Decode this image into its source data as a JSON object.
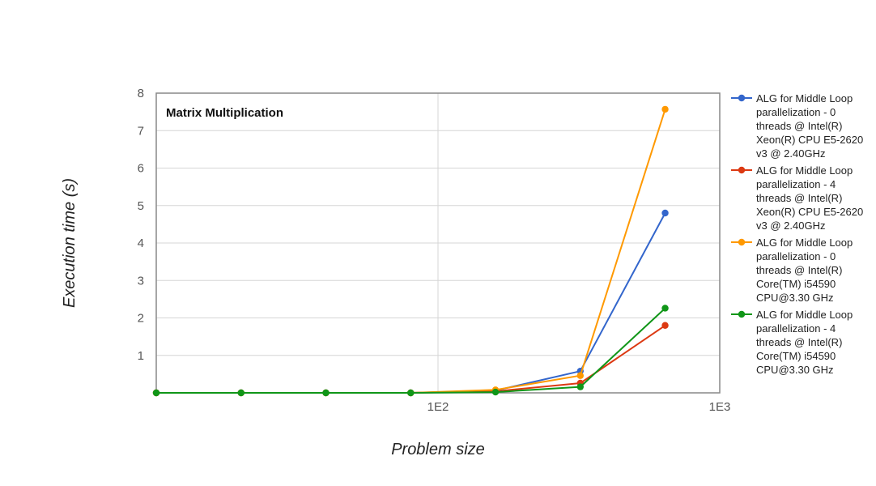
{
  "chart_data": {
    "type": "line",
    "title": "Matrix Multiplication",
    "xlabel": "Problem size",
    "ylabel": "Execution time (s)",
    "x_scale": "log",
    "x_ticks": [
      "1E2",
      "1E3"
    ],
    "y_ticks": [
      "1",
      "2",
      "3",
      "4",
      "5",
      "6",
      "7",
      "8"
    ],
    "ylim": [
      0,
      8
    ],
    "grid": true,
    "legend_position": "right",
    "x": [
      10,
      20,
      40,
      80,
      160,
      320,
      640
    ],
    "series": [
      {
        "name": "ALG for Middle Loop parallelization - 0 threads @ Intel(R) Xeon(R) CPU E5-2620 v3 @ 2.40GHz",
        "color": "#3366cc",
        "values": [
          0.0,
          0.0,
          0.0,
          0.0,
          0.06,
          0.58,
          4.8
        ]
      },
      {
        "name": "ALG for Middle Loop parallelization - 4 threads @ Intel(R) Xeon(R) CPU E5-2620 v3 @ 2.40GHz",
        "color": "#dc3912",
        "values": [
          0.0,
          0.0,
          0.0,
          0.0,
          0.04,
          0.26,
          1.8
        ]
      },
      {
        "name": "ALG for Middle Loop parallelization - 0 threads @ Intel(R) Core(TM) i54590 CPU@3.30 GHz",
        "color": "#ff9900",
        "values": [
          0.0,
          0.0,
          0.0,
          0.0,
          0.08,
          0.46,
          7.57
        ]
      },
      {
        "name": "ALG for Middle Loop parallelization - 4 threads @ Intel(R) Core(TM) i54590 CPU@3.30 GHz",
        "color": "#109618",
        "values": [
          0.0,
          0.0,
          0.0,
          0.0,
          0.02,
          0.16,
          2.26
        ]
      }
    ]
  },
  "legend_lines": [
    [
      "ALG for Middle Loop",
      "parallelization - 0",
      "threads @ Intel(R)",
      "Xeon(R) CPU E5-2620",
      "v3 @ 2.40GHz"
    ],
    [
      "ALG for Middle Loop",
      "parallelization - 4",
      "threads @ Intel(R)",
      "Xeon(R) CPU E5-2620",
      "v3 @ 2.40GHz"
    ],
    [
      "ALG for Middle Loop",
      "parallelization - 0",
      "threads @ Intel(R)",
      "Core(TM) i54590",
      "CPU@3.30 GHz"
    ],
    [
      "ALG for Middle Loop",
      "parallelization - 4",
      "threads @ Intel(R)",
      "Core(TM) i54590",
      "CPU@3.30 GHz"
    ]
  ]
}
